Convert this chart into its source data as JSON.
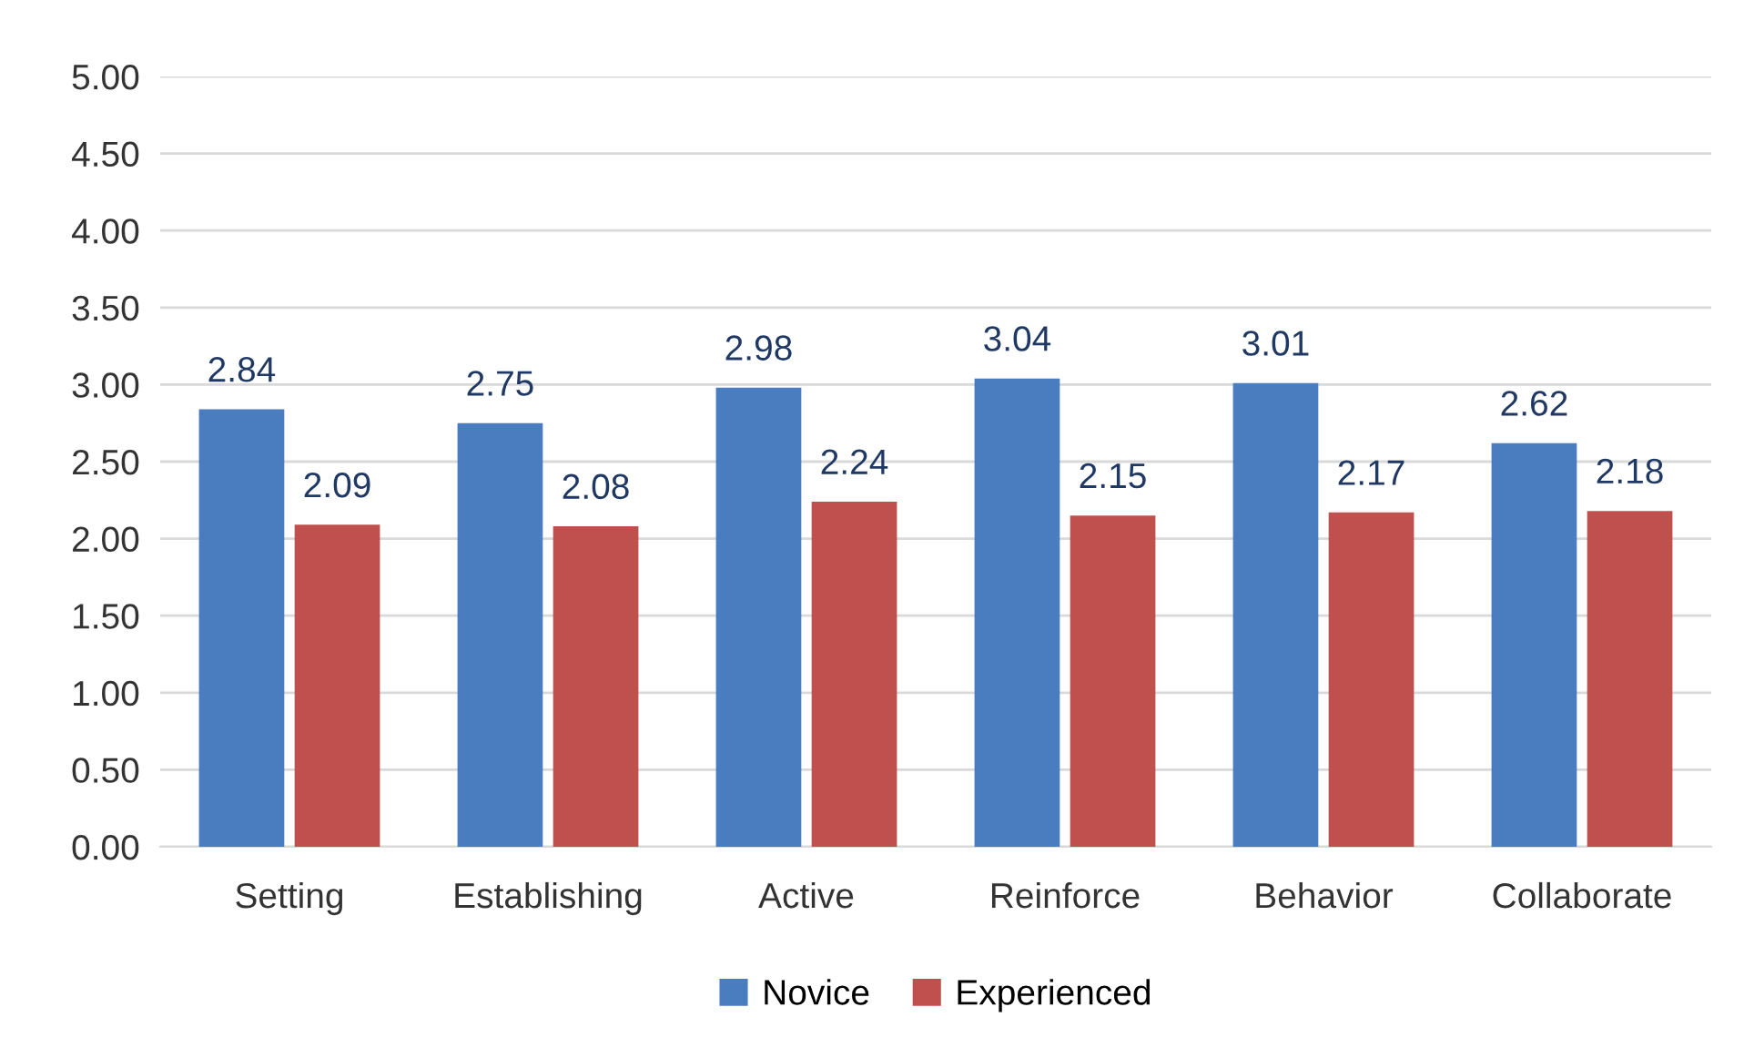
{
  "chart_data": {
    "type": "bar",
    "categories": [
      "Setting",
      "Establishing",
      "Active",
      "Reinforce",
      "Behavior",
      "Collaborate"
    ],
    "series": [
      {
        "name": "Novice",
        "color": "#4a7cc0",
        "values": [
          2.84,
          2.75,
          2.98,
          3.04,
          3.01,
          2.62
        ]
      },
      {
        "name": "Experienced",
        "color": "#c0504d",
        "values": [
          2.09,
          2.08,
          2.24,
          2.15,
          2.17,
          2.18
        ]
      }
    ],
    "ylim": [
      0,
      5
    ],
    "yticks": [
      "0.00",
      "0.50",
      "1.00",
      "1.50",
      "2.00",
      "2.50",
      "3.00",
      "3.50",
      "4.00",
      "4.50",
      "5.00"
    ],
    "grid": "y",
    "legend": "bottom",
    "data_labels": true
  }
}
